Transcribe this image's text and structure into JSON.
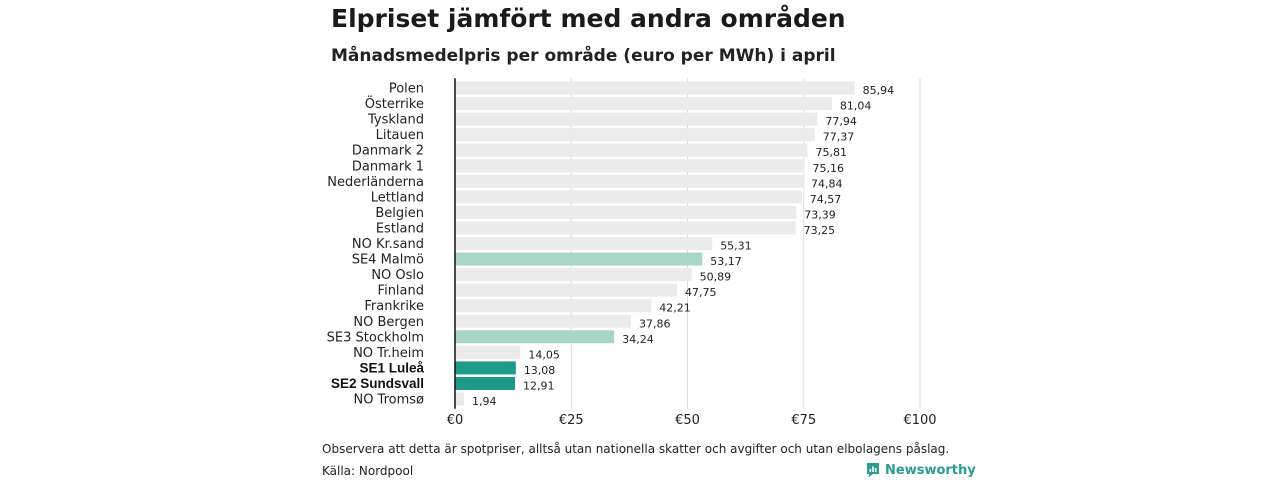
{
  "header": {
    "title": "Elpriset jämfört med andra områden",
    "subtitle": "Månadsmedelpris per område (euro per MWh) i april"
  },
  "footer": {
    "note": "Observera att detta är spotpriser, alltså utan nationella skatter och avgifter och utan elbolagens påslag.",
    "source": "Källa: Nordpool",
    "logo_text": "Newsworthy"
  },
  "colors": {
    "default_bar": "#ebebeb",
    "highlight_light": "#a8d5c8",
    "highlight_dark": "#1e9a8a",
    "axis_line": "#111111",
    "grid": "#dddddd",
    "brand": "#2a9d8f"
  },
  "chart_data": {
    "type": "bar",
    "orientation": "horizontal",
    "title": "Elpriset jämfört med andra områden",
    "subtitle": "Månadsmedelpris per område (euro per MWh) i april",
    "categories": [
      "Polen",
      "Österrike",
      "Tyskland",
      "Litauen",
      "Danmark  2",
      "Danmark  1",
      "Nederländerna",
      "Lettland",
      "Belgien",
      "Estland",
      "NO Kr.sand",
      "SE4  Malmö",
      "NO Oslo",
      "Finland",
      "Frankrike",
      "NO Bergen",
      "SE3  Stockholm",
      "NO Tr.heim",
      "SE1 Luleå",
      "SE2 Sundsvall",
      "NO Tromsø"
    ],
    "values": [
      85.94,
      81.04,
      77.94,
      77.37,
      75.81,
      75.16,
      74.84,
      74.57,
      73.39,
      73.25,
      55.31,
      53.17,
      50.89,
      47.75,
      42.21,
      37.86,
      34.24,
      14.05,
      13.08,
      12.91,
      1.94
    ],
    "value_labels": [
      "85,94",
      "81,04",
      "77,94",
      "77,37",
      "75,81",
      "75,16",
      "74,84",
      "74,57",
      "73,39",
      "73,25",
      "55,31",
      "53,17",
      "50,89",
      "47,75",
      "42,21",
      "37,86",
      "34,24",
      "14,05",
      "13,08",
      "12,91",
      "1,94"
    ],
    "highlight": [
      "none",
      "none",
      "none",
      "none",
      "none",
      "none",
      "none",
      "none",
      "none",
      "none",
      "none",
      "light",
      "none",
      "none",
      "none",
      "none",
      "light",
      "none",
      "dark",
      "dark",
      "none"
    ],
    "bold_labels": [
      "SE1 Luleå",
      "SE2 Sundsvall"
    ],
    "x_ticks": [
      0,
      25,
      50,
      75,
      100
    ],
    "x_tick_labels": [
      "€0",
      "€25",
      "€50",
      "€75",
      "€100"
    ],
    "xlim": [
      0,
      100
    ],
    "grid": true
  }
}
